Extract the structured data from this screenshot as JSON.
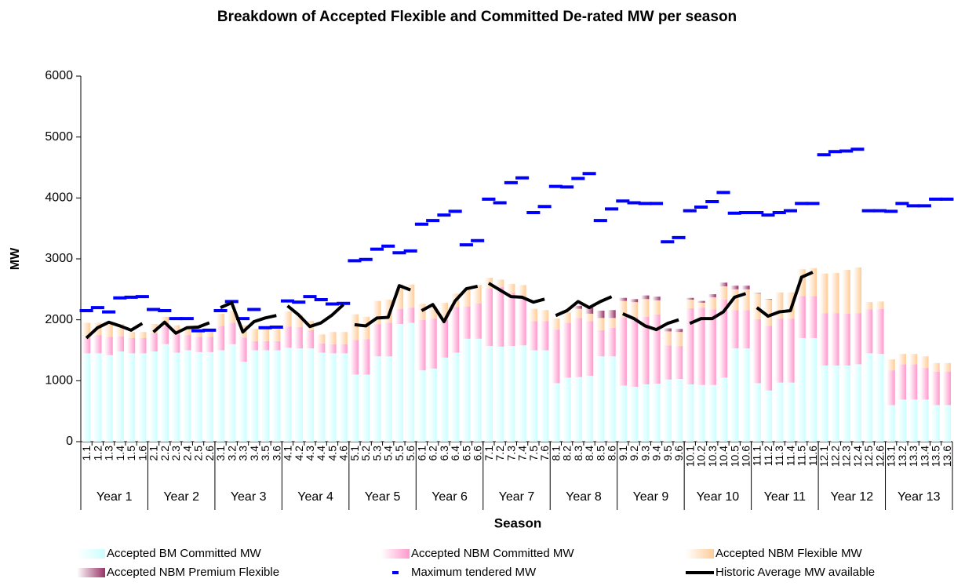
{
  "chart_data": {
    "type": "bar",
    "stacked": true,
    "title": "Breakdown of Accepted Flexible and Committed De-rated MW per season",
    "x_label": "Season",
    "y_label": "MW",
    "categories": [
      "1.1",
      "1.2",
      "1.3",
      "1.4",
      "1.5",
      "1.6",
      "2.1",
      "2.2",
      "2.3",
      "2.4",
      "2.5",
      "2.6",
      "3.1",
      "3.2",
      "3.3",
      "3.4",
      "3.5",
      "3.6",
      "4.1",
      "4.2",
      "4.3",
      "4.4",
      "4.5",
      "4.6",
      "5.1",
      "5.2",
      "5.3",
      "5.4",
      "5.5",
      "5.6",
      "6.1",
      "6.2",
      "6.3",
      "6.4",
      "6.5",
      "6.6",
      "7.1",
      "7.2",
      "7.3",
      "7.4",
      "7.5",
      "7.6",
      "8.1",
      "8.2",
      "8.3",
      "8.4",
      "8.5",
      "8.6",
      "9.1",
      "9.2",
      "9.3",
      "9.4",
      "9.5",
      "9.6",
      "10.1",
      "10.2",
      "10.3",
      "10.4",
      "10.5",
      "10.6",
      "11.1",
      "11.2",
      "11.3",
      "11.4",
      "11.5",
      "11.6",
      "12.1",
      "12.2",
      "12.3",
      "12.4",
      "12.5",
      "12.6",
      "13.1",
      "13.2",
      "13.3",
      "13.4",
      "13.5",
      "13.6"
    ],
    "groups": [
      "Year 1",
      "Year 2",
      "Year 3",
      "Year 4",
      "Year 5",
      "Year 6",
      "Year 7",
      "Year 8",
      "Year 9",
      "Year 10",
      "Year 11",
      "Year 12",
      "Year 13"
    ],
    "ylim": [
      0,
      6000
    ],
    "yticks": [
      0,
      1000,
      2000,
      3000,
      4000,
      5000,
      6000
    ],
    "series": [
      {
        "name": "Accepted BM Committed MW",
        "type": "bar",
        "color": "#ccffff",
        "values": [
          1450,
          1450,
          1420,
          1480,
          1450,
          1450,
          1480,
          1600,
          1460,
          1500,
          1470,
          1470,
          1500,
          1600,
          1310,
          1500,
          1500,
          1500,
          1540,
          1530,
          1530,
          1460,
          1450,
          1450,
          1100,
          1100,
          1400,
          1400,
          1930,
          1950,
          1170,
          1200,
          1380,
          1460,
          1690,
          1690,
          1570,
          1560,
          1570,
          1580,
          1500,
          1500,
          960,
          1050,
          1060,
          1080,
          1400,
          1400,
          920,
          900,
          940,
          950,
          1020,
          1030,
          940,
          930,
          930,
          1050,
          1530,
          1530,
          960,
          840,
          970,
          970,
          1700,
          1700,
          1250,
          1250,
          1250,
          1270,
          1450,
          1440,
          600,
          690,
          690,
          690,
          600,
          600
        ]
      },
      {
        "name": "Accepted NBM Committed MW",
        "type": "bar",
        "color": "#ff99cc",
        "values": [
          250,
          300,
          300,
          250,
          250,
          250,
          300,
          300,
          300,
          250,
          250,
          250,
          400,
          350,
          400,
          150,
          150,
          150,
          350,
          350,
          300,
          150,
          150,
          150,
          570,
          580,
          530,
          550,
          250,
          250,
          830,
          820,
          620,
          750,
          530,
          580,
          950,
          980,
          870,
          770,
          480,
          480,
          880,
          900,
          970,
          900,
          430,
          470,
          1120,
          1140,
          1110,
          1140,
          560,
          540,
          1250,
          1270,
          1240,
          1280,
          630,
          630,
          1050,
          1060,
          1050,
          1050,
          690,
          690,
          860,
          860,
          850,
          840,
          720,
          740,
          570,
          580,
          580,
          520,
          550,
          550
        ]
      },
      {
        "name": "Accepted NBM Flexible MW",
        "type": "bar",
        "color": "#ffcc99",
        "values": [
          250,
          200,
          200,
          200,
          100,
          100,
          150,
          150,
          150,
          150,
          100,
          100,
          200,
          200,
          200,
          200,
          200,
          200,
          250,
          200,
          150,
          150,
          200,
          200,
          420,
          370,
          380,
          380,
          400,
          380,
          260,
          200,
          280,
          220,
          300,
          300,
          170,
          120,
          150,
          220,
          200,
          180,
          180,
          170,
          150,
          120,
          200,
          160,
          270,
          250,
          290,
          230,
          230,
          230,
          140,
          80,
          200,
          220,
          340,
          340,
          420,
          430,
          430,
          430,
          440,
          460,
          650,
          660,
          720,
          750,
          120,
          120,
          180,
          170,
          170,
          190,
          140,
          140
        ]
      },
      {
        "name": "Accepted NBM Premium Flexible",
        "type": "bar",
        "color": "#993366",
        "values": [
          0,
          0,
          0,
          0,
          0,
          0,
          0,
          0,
          0,
          0,
          0,
          0,
          0,
          0,
          0,
          0,
          0,
          0,
          0,
          0,
          0,
          0,
          0,
          0,
          0,
          0,
          0,
          0,
          0,
          0,
          0,
          0,
          0,
          0,
          0,
          0,
          0,
          0,
          0,
          0,
          0,
          0,
          0,
          0,
          50,
          100,
          120,
          130,
          50,
          50,
          60,
          60,
          50,
          50,
          30,
          30,
          50,
          60,
          60,
          60,
          10,
          10,
          0,
          0,
          0,
          0,
          0,
          0,
          0,
          0,
          0,
          0,
          0,
          0,
          0,
          0,
          0,
          0
        ]
      },
      {
        "name": "Maximum tendered MW",
        "type": "dash",
        "color": "#0000ff",
        "values": [
          2150,
          2200,
          2130,
          2360,
          2370,
          2380,
          2170,
          2150,
          2020,
          2020,
          1820,
          1830,
          2150,
          2300,
          2020,
          2170,
          1870,
          1880,
          2310,
          2290,
          2380,
          2330,
          2260,
          2270,
          2970,
          2990,
          3160,
          3210,
          3100,
          3130,
          3570,
          3630,
          3720,
          3780,
          3230,
          3300,
          3980,
          3920,
          4250,
          4330,
          3760,
          3860,
          4190,
          4180,
          4320,
          4400,
          3630,
          3820,
          3950,
          3920,
          3910,
          3910,
          3280,
          3350,
          3790,
          3850,
          3940,
          4090,
          3750,
          3760,
          3760,
          3720,
          3760,
          3790,
          3910,
          3910,
          4710,
          4760,
          4770,
          4800,
          3790,
          3790,
          3780,
          3910,
          3870,
          3870,
          3980,
          3980
        ]
      },
      {
        "name": "Historic Average MW available",
        "type": "line",
        "color": "#000000",
        "values": [
          1700,
          1870,
          1960,
          1900,
          1830,
          1940,
          1800,
          1960,
          1780,
          1870,
          1880,
          1950,
          2200,
          2280,
          1800,
          1970,
          2030,
          2070,
          2230,
          2080,
          1890,
          1950,
          2080,
          2250,
          1920,
          1900,
          2030,
          2040,
          2560,
          2490,
          2150,
          2250,
          1970,
          2310,
          2510,
          2550,
          2600,
          2490,
          2380,
          2370,
          2290,
          2340,
          2070,
          2150,
          2300,
          2200,
          2300,
          2380,
          2100,
          2020,
          1900,
          1840,
          1940,
          2000,
          1940,
          2020,
          2020,
          2130,
          2370,
          2430,
          2200,
          2060,
          2130,
          2150,
          2700,
          2780,
          null,
          null,
          null,
          null,
          null,
          null,
          null,
          null,
          null,
          null,
          null,
          null
        ]
      }
    ]
  }
}
